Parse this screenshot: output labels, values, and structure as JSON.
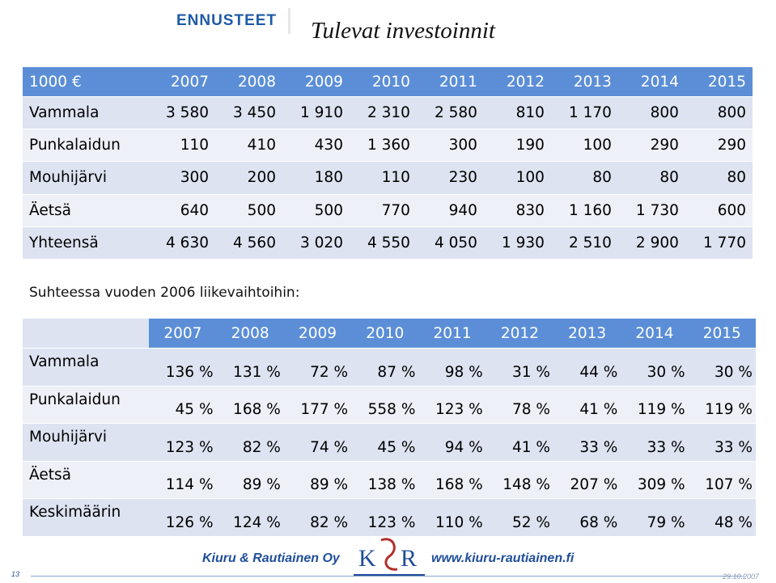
{
  "badge": "ENNUSTEET",
  "title": "Tulevat investoinnit",
  "investments": {
    "header": [
      "1000 €",
      "2007",
      "2008",
      "2009",
      "2010",
      "2011",
      "2012",
      "2013",
      "2014",
      "2015"
    ],
    "rows": [
      [
        "Vammala",
        "3 580",
        "3 450",
        "1 910",
        "2 310",
        "2 580",
        "810",
        "1 170",
        "800",
        "800"
      ],
      [
        "Punkalaidun",
        "110",
        "410",
        "430",
        "1 360",
        "300",
        "190",
        "100",
        "290",
        "290"
      ],
      [
        "Mouhijärvi",
        "300",
        "200",
        "180",
        "110",
        "230",
        "100",
        "80",
        "80",
        "80"
      ],
      [
        "Äetsä",
        "640",
        "500",
        "500",
        "770",
        "940",
        "830",
        "1 160",
        "1 730",
        "600"
      ],
      [
        "Yhteensä",
        "4 630",
        "4 560",
        "3 020",
        "4 550",
        "4 050",
        "1 930",
        "2 510",
        "2 900",
        "1 770"
      ]
    ]
  },
  "relative_title": "Suhteessa vuoden 2006 liikevaihtoihin:",
  "relative": {
    "header": [
      "2007",
      "2008",
      "2009",
      "2010",
      "2011",
      "2012",
      "2013",
      "2014",
      "2015"
    ],
    "rows": [
      [
        "Vammala",
        "136 %",
        "131 %",
        "72 %",
        "87 %",
        "98 %",
        "31 %",
        "44 %",
        "30 %",
        "30 %"
      ],
      [
        "Punkalaidun",
        "45 %",
        "168 %",
        "177 %",
        "558 %",
        "123 %",
        "78 %",
        "41 %",
        "119 %",
        "119 %"
      ],
      [
        "Mouhijärvi",
        "123 %",
        "82 %",
        "74 %",
        "45 %",
        "94 %",
        "41 %",
        "33 %",
        "33 %",
        "33 %"
      ],
      [
        "Äetsä",
        "114 %",
        "89 %",
        "89 %",
        "138 %",
        "168 %",
        "148 %",
        "207 %",
        "309 %",
        "107 %"
      ],
      [
        "Keskimäärin",
        "126 %",
        "124 %",
        "82 %",
        "123 %",
        "110 %",
        "52 %",
        "68 %",
        "79 %",
        "48 %"
      ]
    ]
  },
  "footer": {
    "company": "Kiuru & Rautiainen Oy",
    "logo_k": "K",
    "logo_r": "R",
    "website": "www.kiuru-rautiainen.fi",
    "page_number": "13",
    "date": "29.10.2007"
  },
  "colors": {
    "header_blue": "#5b8ed6",
    "row_light": "#eef0f8",
    "row_dark": "#dde3f1",
    "brand_blue": "#1f4e9a"
  }
}
